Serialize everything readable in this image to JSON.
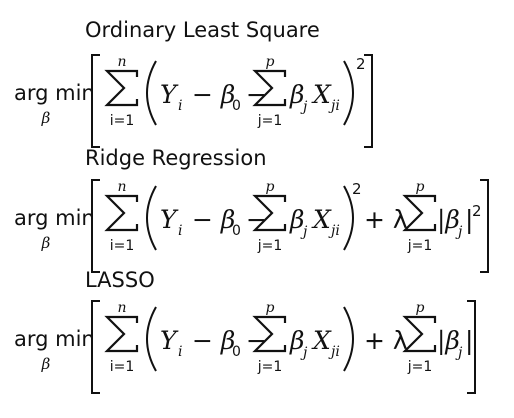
{
  "sections": [
    {
      "title": "Ordinary Least Square",
      "argmin": "arg min",
      "argmin_sub": "β",
      "sum_n": {
        "top": "n",
        "bottom": "i=1"
      },
      "y_term": "Y",
      "y_sub": "i",
      "minus_beta0": "− β",
      "beta0_sub": "0",
      "sum_p": {
        "top": "p",
        "bottom": "j=1"
      },
      "beta_j": "β",
      "beta_j_sub": "j",
      "x_term": "X",
      "x_sub": "ji",
      "power": "2",
      "penalty": null
    },
    {
      "title": "Ridge Regression",
      "argmin": "arg min",
      "argmin_sub": "β",
      "sum_n": {
        "top": "n",
        "bottom": "i=1"
      },
      "y_term": "Y",
      "y_sub": "i",
      "minus_beta0": "− β",
      "beta0_sub": "0",
      "sum_p": {
        "top": "p",
        "bottom": "j=1"
      },
      "beta_j": "β",
      "beta_j_sub": "j",
      "x_term": "X",
      "x_sub": "ji",
      "power": "2",
      "penalty": {
        "plus_lambda": "+ λ",
        "sum": {
          "top": "p",
          "bottom": "j=1"
        },
        "abs_beta": "|β",
        "abs_beta_sub": "j",
        "abs_close": "|",
        "power": "2"
      }
    },
    {
      "title": "LASSO",
      "argmin": "arg min",
      "argmin_sub": "β",
      "sum_n": {
        "top": "n",
        "bottom": "i=1"
      },
      "y_term": "Y",
      "y_sub": "i",
      "minus_beta0": "− β",
      "beta0_sub": "0",
      "sum_p": {
        "top": "p",
        "bottom": "j=1"
      },
      "beta_j": "β",
      "beta_j_sub": "j",
      "x_term": "X",
      "x_sub": "ji",
      "power": "",
      "penalty": {
        "plus_lambda": "+ λ",
        "sum": {
          "top": "p",
          "bottom": "j=1"
        },
        "abs_beta": "|β",
        "abs_beta_sub": "j",
        "abs_close": "|",
        "power": ""
      }
    }
  ]
}
